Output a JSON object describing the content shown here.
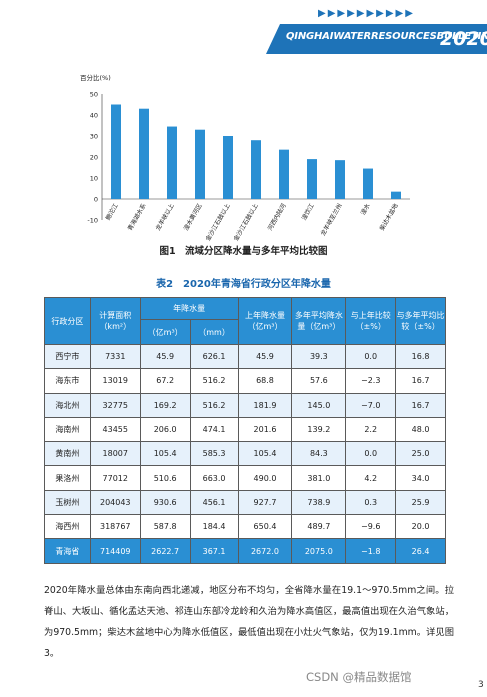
{
  "header": {
    "title": "QINGHAIWATERRESOURCESBULLETIN",
    "year": "2020",
    "chevrons": "▶▶▶▶▶▶▶▶▶▶",
    "page_number": "3"
  },
  "figure": {
    "caption": "图1　流域分区降水量与多年平均比较图",
    "chart_data": {
      "type": "bar",
      "ylabel": "百分比(%)",
      "ylim": [
        -10,
        50
      ],
      "yticks": [
        -10,
        0,
        10,
        20,
        30,
        40,
        50
      ],
      "categories": [
        "鲍沱江",
        "青海湖水系",
        "龙羊峡以上",
        "湟水黄河区",
        "金沙江石鼓以上",
        "金沙江石鼓以上",
        "河西内陆河",
        "湟饮江",
        "龙羊峡至兰州",
        "湟水",
        "柴达木盆地"
      ],
      "values": [
        45,
        43,
        34.5,
        33,
        30,
        28,
        23.5,
        19,
        18.5,
        14.5,
        3.5
      ],
      "bar_color": "#2a8fd3"
    }
  },
  "table": {
    "title": "表2　2020年青海省行政分区年降水量",
    "headers": {
      "district": "行政分区",
      "area": "计算面积（km²）",
      "annual": "年降水量",
      "annual_vol": "（亿m³）",
      "annual_mm": "（mm）",
      "last_year": "上年降水量（亿m³）",
      "avg": "多年平均降水量（亿m³）",
      "cmp_last": "与上年比较（±%）",
      "cmp_avg": "与多年平均比较（±%）"
    },
    "rows": [
      [
        "西宁市",
        "7331",
        "45.9",
        "626.1",
        "45.9",
        "39.3",
        "0.0",
        "16.8"
      ],
      [
        "海东市",
        "13019",
        "67.2",
        "516.2",
        "68.8",
        "57.6",
        "−2.3",
        "16.7"
      ],
      [
        "海北州",
        "32775",
        "169.2",
        "516.2",
        "181.9",
        "145.0",
        "−7.0",
        "16.7"
      ],
      [
        "海南州",
        "43455",
        "206.0",
        "474.1",
        "201.6",
        "139.2",
        "2.2",
        "48.0"
      ],
      [
        "黄南州",
        "18007",
        "105.4",
        "585.3",
        "105.4",
        "84.3",
        "0.0",
        "25.0"
      ],
      [
        "果洛州",
        "77012",
        "510.6",
        "663.0",
        "490.0",
        "381.0",
        "4.2",
        "34.0"
      ],
      [
        "玉树州",
        "204043",
        "930.6",
        "456.1",
        "927.7",
        "738.9",
        "0.3",
        "25.9"
      ],
      [
        "海西州",
        "318767",
        "587.8",
        "184.4",
        "650.4",
        "489.7",
        "−9.6",
        "20.0"
      ],
      [
        "青海省",
        "714409",
        "2622.7",
        "367.1",
        "2672.0",
        "2075.0",
        "−1.8",
        "26.4"
      ]
    ]
  },
  "paragraph": "2020年降水量总体由东南向西北递减，地区分布不均匀，全省降水量在19.1～970.5mm之间。拉脊山、大坂山、循化孟达天池、祁连山东部冷龙岭和久治为降水高值区，最高值出现在久治气象站，为970.5mm；柴达木盆地中心为降水低值区，最低值出现在小灶火气象站，仅为19.1mm。详见图3。",
  "watermark": "CSDN @精品数据馆"
}
